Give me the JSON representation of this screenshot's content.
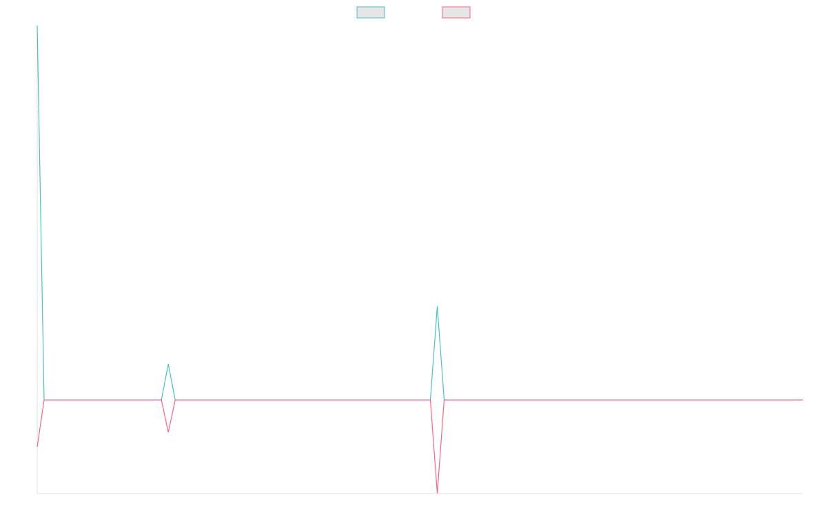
{
  "chart_data": {
    "type": "line",
    "title": "",
    "xlabel": "",
    "ylabel": "",
    "x_count": 112,
    "ylim": [
      -1.3,
      5.2
    ],
    "grid": false,
    "legend_position": "top-center",
    "series": [
      {
        "color": "#4bc0c0",
        "points": [
          [
            0,
            5.2
          ],
          [
            1,
            0.0
          ],
          [
            18,
            0.0
          ],
          [
            19,
            0.5
          ],
          [
            20,
            0.0
          ],
          [
            57,
            0.0
          ],
          [
            58,
            1.3
          ],
          [
            59,
            0.0
          ],
          [
            111,
            0.0
          ]
        ]
      },
      {
        "color": "#ff6384",
        "points": [
          [
            0,
            -0.65
          ],
          [
            1,
            0.0
          ],
          [
            18,
            0.0
          ],
          [
            19,
            -0.45
          ],
          [
            20,
            0.0
          ],
          [
            57,
            0.0
          ],
          [
            58,
            -1.3
          ],
          [
            59,
            0.0
          ],
          [
            111,
            0.0
          ]
        ]
      }
    ]
  }
}
